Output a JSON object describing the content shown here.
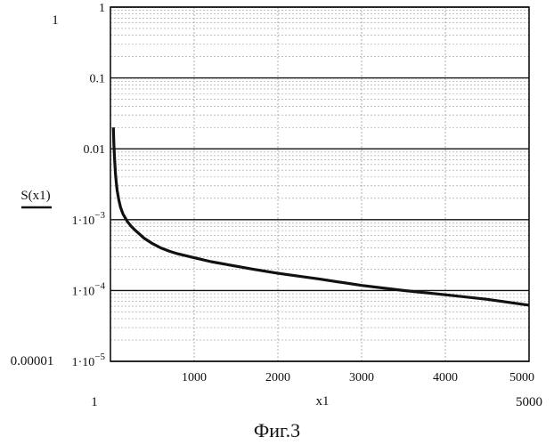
{
  "figure": {
    "caption": "Фиг.3"
  },
  "chart_data": {
    "type": "line",
    "ylabel": "S(x1)",
    "xlabel": "x1",
    "yscale": "log",
    "xlim": [
      0,
      5000
    ],
    "ylim": [
      1e-05,
      1
    ],
    "grid": true,
    "x_ticks": [
      {
        "value": 1000,
        "label": "1000"
      },
      {
        "value": 2000,
        "label": "2000"
      },
      {
        "value": 3000,
        "label": "3000"
      },
      {
        "value": 4000,
        "label": "4000"
      },
      {
        "value": 5000,
        "label": "5000"
      }
    ],
    "y_ticks": [
      {
        "value": 1,
        "label": "1"
      },
      {
        "value": 0.1,
        "label": "0.1"
      },
      {
        "value": 0.01,
        "label": "0.01"
      },
      {
        "value": 0.001,
        "label": "1·10",
        "exp": "−3"
      },
      {
        "value": 0.0001,
        "label": "1·10",
        "exp": "−4"
      },
      {
        "value": 1e-05,
        "label": "1·10",
        "exp": "−5"
      }
    ],
    "y_range_labels": {
      "top": "1",
      "bottom": "0.00001"
    },
    "x_range_labels": {
      "left": "1",
      "right": "5000"
    },
    "series": [
      {
        "x": [
          35,
          40,
          50,
          60,
          70,
          80,
          100,
          120,
          150,
          200,
          250,
          300,
          400,
          500,
          600,
          700,
          800,
          900,
          1000,
          1200,
          1500,
          1700,
          2000,
          2500,
          3000,
          3500,
          4000,
          4500,
          5000
        ],
        "y": [
          0.02,
          0.012,
          0.007,
          0.0045,
          0.0033,
          0.0026,
          0.0019,
          0.0015,
          0.0012,
          0.00095,
          0.0008,
          0.0007,
          0.00055,
          0.00046,
          0.0004,
          0.00036,
          0.00033,
          0.00031,
          0.00029,
          0.000255,
          0.00022,
          0.0002,
          0.000175,
          0.000145,
          0.000118,
          0.0001,
          8.7e-05,
          7.5e-05,
          6.2e-05
        ]
      }
    ]
  }
}
